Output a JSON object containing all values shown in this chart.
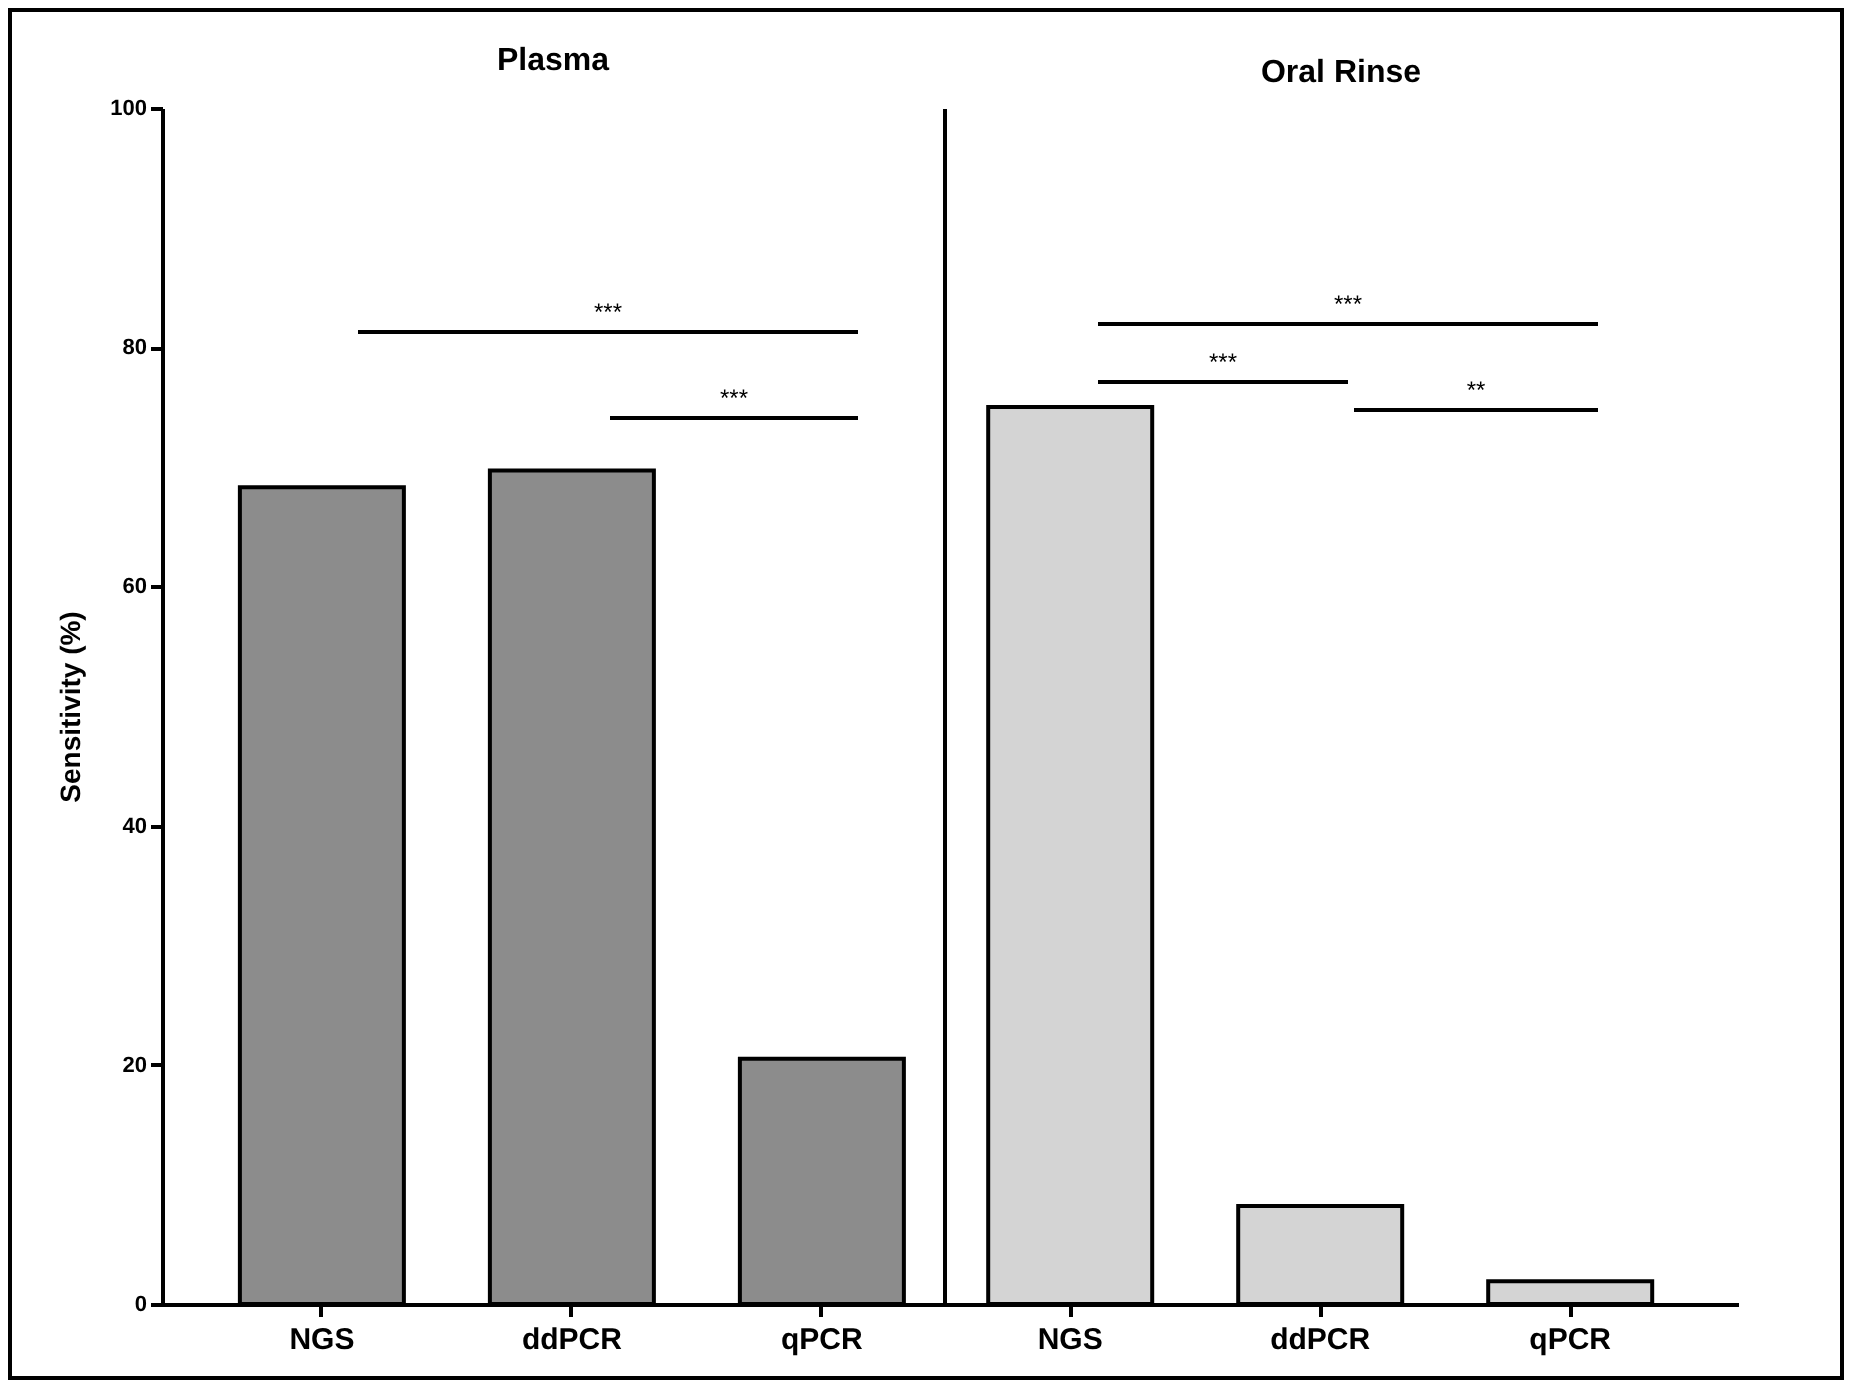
{
  "chart_data": [
    {
      "type": "bar",
      "title": "Plasma",
      "ylabel": "Sensitivity (%)",
      "categories": [
        "NGS",
        "ddPCR",
        "qPCR"
      ],
      "values": [
        68.3,
        69.7,
        20.5
      ],
      "color": "#8c8c8c",
      "ylim": [
        0,
        100
      ],
      "yticks": [
        0,
        20,
        40,
        60,
        80,
        100
      ],
      "annotations": [
        "***",
        "***"
      ]
    },
    {
      "type": "bar",
      "title": "Oral Rinse",
      "categories": [
        "NGS",
        "ddPCR",
        "qPCR"
      ],
      "values": [
        75.0,
        8.2,
        1.9
      ],
      "color": "#d4d4d4",
      "ylim": [
        0,
        100
      ],
      "tick_labels": "x",
      "annotations": [
        "***",
        "***",
        "**"
      ]
    }
  ]
}
